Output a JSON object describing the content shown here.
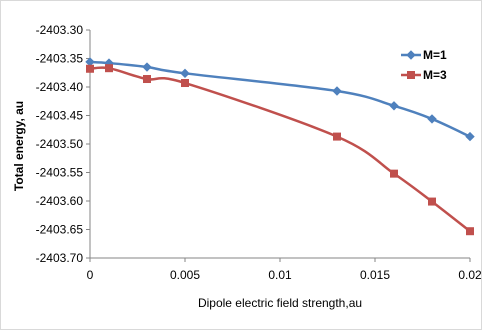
{
  "chart_data": {
    "type": "line",
    "title": "",
    "xlabel": "Dipole electric field strength,au",
    "ylabel": "Total energy, au",
    "xlim": [
      0,
      0.02
    ],
    "ylim": [
      -2403.7,
      -2403.3
    ],
    "x_ticks": [
      0,
      0.005,
      0.01,
      0.015,
      0.02
    ],
    "x_tick_labels": [
      "0",
      "0.005",
      "0.01",
      "0.015",
      "0.02"
    ],
    "y_ticks": [
      -2403.3,
      -2403.35,
      -2403.4,
      -2403.45,
      -2403.5,
      -2403.55,
      -2403.6,
      -2403.65,
      -2403.7
    ],
    "y_tick_labels": [
      "-2403.30",
      "-2403.35",
      "-2403.40",
      "-2403.45",
      "-2403.50",
      "-2403.55",
      "-2403.60",
      "-2403.65",
      "-2403.70"
    ],
    "grid": false,
    "legend_position": "right",
    "series": [
      {
        "name": "M=1",
        "color": "#4f81bd",
        "marker": "diamond",
        "x": [
          0,
          0.001,
          0.003,
          0.005,
          0.013,
          0.016,
          0.018,
          0.02
        ],
        "y": [
          -2403.356,
          -2403.358,
          -2403.365,
          -2403.376,
          -2403.407,
          -2403.433,
          -2403.456,
          -2403.487
        ]
      },
      {
        "name": "M=3",
        "color": "#c0504d",
        "marker": "square",
        "x": [
          0,
          0.001,
          0.003,
          0.005,
          0.013,
          0.016,
          0.018,
          0.02
        ],
        "y": [
          -2403.368,
          -2403.367,
          -2403.386,
          -2403.393,
          -2403.487,
          -2403.552,
          -2403.601,
          -2403.653
        ]
      }
    ]
  }
}
